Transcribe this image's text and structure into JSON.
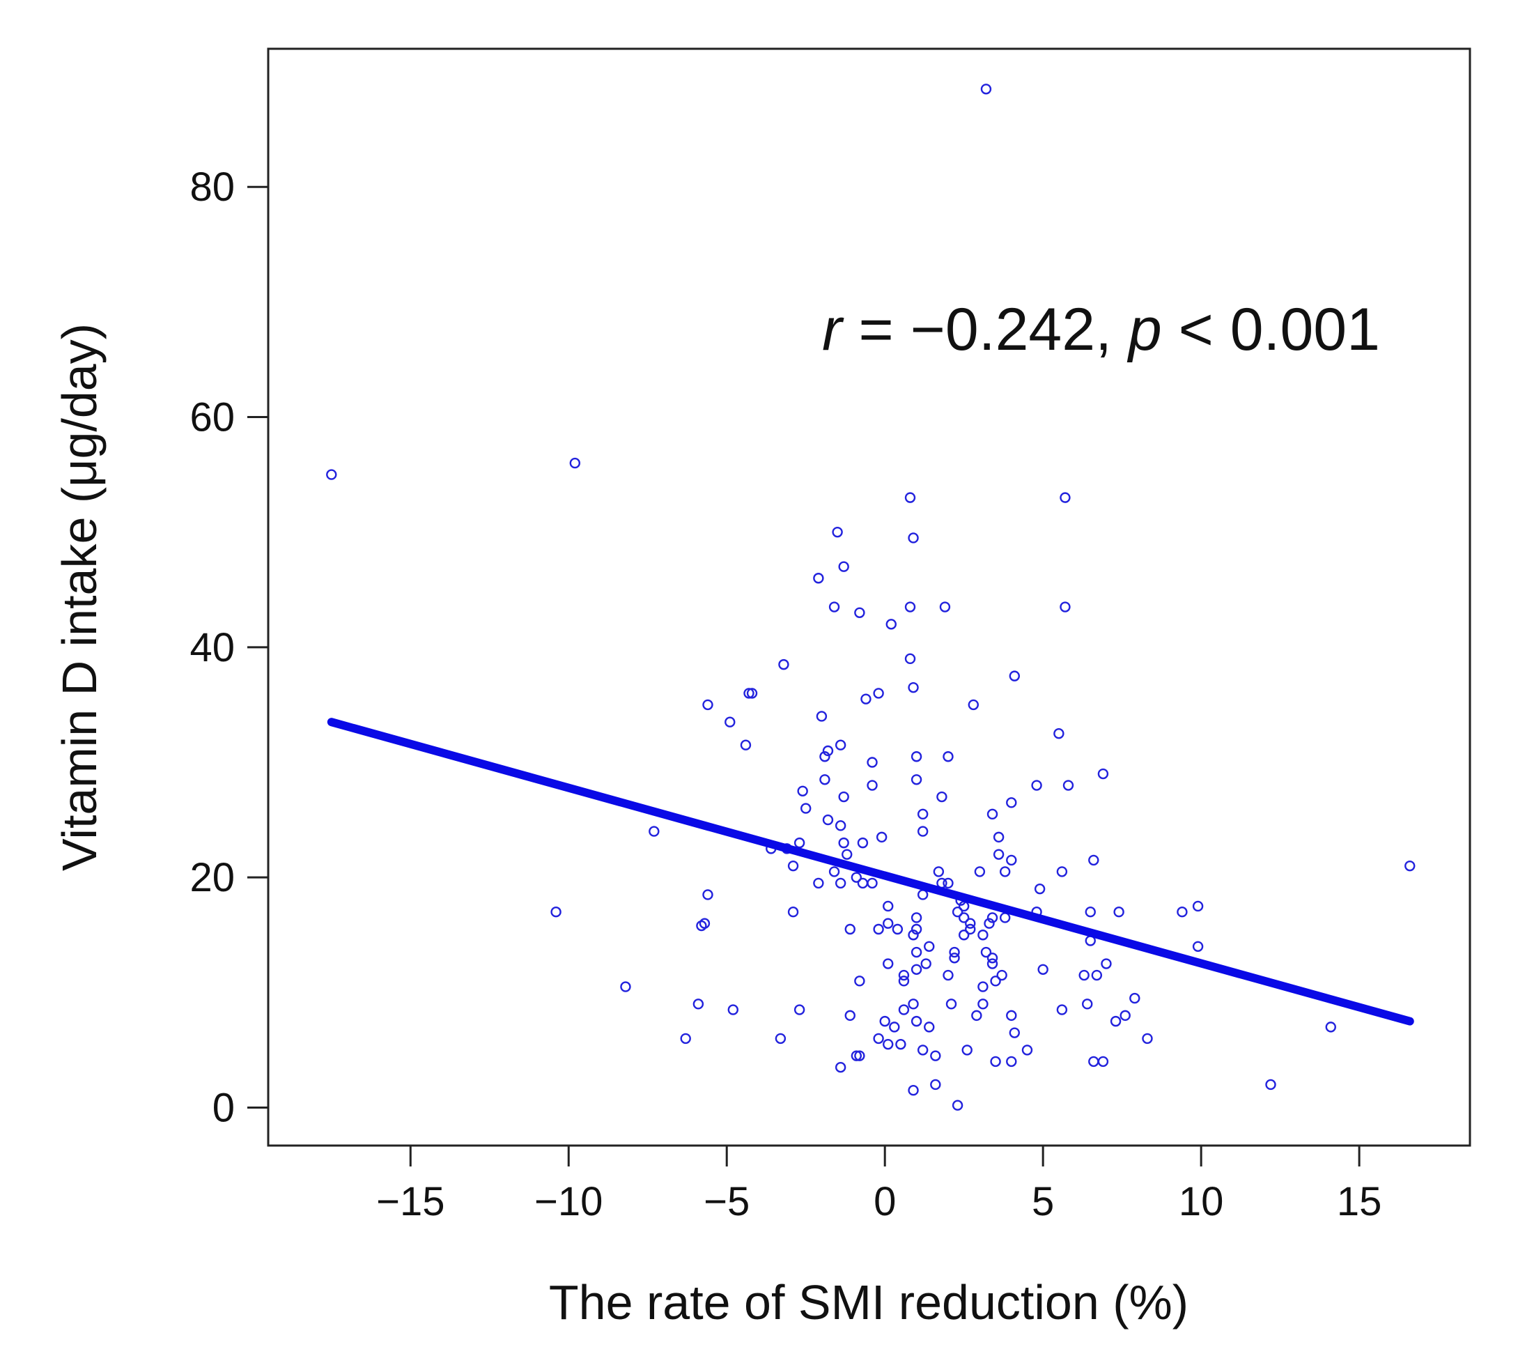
{
  "chart_data": {
    "type": "scatter",
    "title": "",
    "xlabel": "The rate of SMI reduction (%)",
    "ylabel": "Vitamin D intake (μg/day)",
    "xlim": [
      -19.5,
      18.5
    ],
    "ylim": [
      -3.3,
      92
    ],
    "xticks": [
      -15,
      -10,
      -5,
      0,
      5,
      10,
      15
    ],
    "yticks": [
      0,
      20,
      40,
      60,
      80
    ],
    "xtick_labels": [
      "−15",
      "−10",
      "−5",
      "0",
      "5",
      "10",
      "15"
    ],
    "ytick_labels": [
      "0",
      "20",
      "40",
      "60",
      "80"
    ],
    "annotation": {
      "r_symbol": "r",
      "r_text": " = −0.242, ",
      "p_symbol": "p",
      "p_text": " < 0.001"
    },
    "colors": {
      "points": "#2222dd",
      "fit_line": "#0a0ae6",
      "frame": "#222222"
    },
    "fit_line": {
      "x": [
        -17.5,
        16.6
      ],
      "y": [
        33.5,
        7.5
      ]
    },
    "points": [
      [
        3.2,
        88.5
      ],
      [
        -17.5,
        55
      ],
      [
        -9.8,
        56
      ],
      [
        0.8,
        53
      ],
      [
        5.7,
        53
      ],
      [
        0.9,
        49.5
      ],
      [
        -1.5,
        50
      ],
      [
        -1.3,
        47
      ],
      [
        -2.1,
        46
      ],
      [
        -1.6,
        43.5
      ],
      [
        -0.8,
        43
      ],
      [
        0.8,
        43.5
      ],
      [
        1.9,
        43.5
      ],
      [
        5.7,
        43.5
      ],
      [
        0.2,
        42
      ],
      [
        0.8,
        39
      ],
      [
        -3.2,
        38.5
      ],
      [
        4.1,
        37.5
      ],
      [
        -4.2,
        36
      ],
      [
        -4.3,
        36
      ],
      [
        0.9,
        36.5
      ],
      [
        -0.2,
        36
      ],
      [
        -0.6,
        35.5
      ],
      [
        2.8,
        35
      ],
      [
        -5.6,
        35
      ],
      [
        -2,
        34
      ],
      [
        -4.9,
        33.5
      ],
      [
        5.5,
        32.5
      ],
      [
        -4.4,
        31.5
      ],
      [
        -1.4,
        31.5
      ],
      [
        -1.8,
        31
      ],
      [
        -1.9,
        30.5
      ],
      [
        1,
        30.5
      ],
      [
        2,
        30.5
      ],
      [
        -0.4,
        30
      ],
      [
        6.9,
        29
      ],
      [
        -1.9,
        28.5
      ],
      [
        1,
        28.5
      ],
      [
        -0.4,
        28
      ],
      [
        4.8,
        28
      ],
      [
        5.8,
        28
      ],
      [
        -2.6,
        27.5
      ],
      [
        -1.3,
        27
      ],
      [
        1.8,
        27
      ],
      [
        4,
        26.5
      ],
      [
        -2.5,
        26
      ],
      [
        1.2,
        25.5
      ],
      [
        3.4,
        25.5
      ],
      [
        -1.8,
        25
      ],
      [
        -1.4,
        24.5
      ],
      [
        1.2,
        24
      ],
      [
        -0.1,
        23.5
      ],
      [
        3.6,
        23.5
      ],
      [
        -7.3,
        24
      ],
      [
        -1.3,
        23
      ],
      [
        -0.7,
        23
      ],
      [
        -2.7,
        23
      ],
      [
        -3.1,
        22.5
      ],
      [
        -3.6,
        22.5
      ],
      [
        3.6,
        22
      ],
      [
        -1.2,
        22
      ],
      [
        4,
        21.5
      ],
      [
        6.6,
        21.5
      ],
      [
        -2.9,
        21
      ],
      [
        -1.6,
        20.5
      ],
      [
        1.7,
        20.5
      ],
      [
        3,
        20.5
      ],
      [
        3.8,
        20.5
      ],
      [
        5.6,
        20.5
      ],
      [
        16.6,
        21
      ],
      [
        -0.9,
        20
      ],
      [
        2,
        19.5
      ],
      [
        -2.1,
        19.5
      ],
      [
        -1.4,
        19.5
      ],
      [
        -0.7,
        19.5
      ],
      [
        -0.4,
        19.5
      ],
      [
        1.8,
        19.5
      ],
      [
        4.9,
        19
      ],
      [
        -5.6,
        18.5
      ],
      [
        1.2,
        18.5
      ],
      [
        2.4,
        18
      ],
      [
        9.9,
        17.5
      ],
      [
        0.1,
        17.5
      ],
      [
        2.5,
        17.5
      ],
      [
        2.3,
        17
      ],
      [
        -2.9,
        17
      ],
      [
        -10.4,
        17
      ],
      [
        4.8,
        17
      ],
      [
        6.5,
        17
      ],
      [
        7.4,
        17
      ],
      [
        9.4,
        17
      ],
      [
        1,
        16.5
      ],
      [
        3.8,
        16.5
      ],
      [
        2.5,
        16.5
      ],
      [
        3.4,
        16.5
      ],
      [
        2.7,
        16
      ],
      [
        3.3,
        16
      ],
      [
        0.1,
        16
      ],
      [
        1,
        15.5
      ],
      [
        2.7,
        15.5
      ],
      [
        -1.1,
        15.5
      ],
      [
        -5.7,
        16
      ],
      [
        -5.8,
        15.8
      ],
      [
        -0.2,
        15.5
      ],
      [
        0.4,
        15.5
      ],
      [
        0.9,
        15
      ],
      [
        3.1,
        15
      ],
      [
        2.5,
        15
      ],
      [
        6.5,
        14.5
      ],
      [
        9.9,
        14
      ],
      [
        1.4,
        14
      ],
      [
        2.2,
        13.5
      ],
      [
        1,
        13.5
      ],
      [
        3.2,
        13.5
      ],
      [
        3.4,
        13
      ],
      [
        2.2,
        13
      ],
      [
        1.3,
        12.5
      ],
      [
        3.4,
        12.5
      ],
      [
        0.1,
        12.5
      ],
      [
        7,
        12.5
      ],
      [
        1,
        12
      ],
      [
        5,
        12
      ],
      [
        6.7,
        11.5
      ],
      [
        6.3,
        11.5
      ],
      [
        0.6,
        11.5
      ],
      [
        2,
        11.5
      ],
      [
        3.7,
        11.5
      ],
      [
        3.5,
        11
      ],
      [
        -0.8,
        11
      ],
      [
        0.6,
        11
      ],
      [
        -8.2,
        10.5
      ],
      [
        3.1,
        10.5
      ],
      [
        7.9,
        9.5
      ],
      [
        2.1,
        9
      ],
      [
        -5.9,
        9
      ],
      [
        -2.7,
        8.5
      ],
      [
        -4.8,
        8.5
      ],
      [
        0.9,
        9
      ],
      [
        3.1,
        9
      ],
      [
        6.4,
        9
      ],
      [
        5.6,
        8.5
      ],
      [
        0.6,
        8.5
      ],
      [
        2.9,
        8
      ],
      [
        4,
        8
      ],
      [
        -1.1,
        8
      ],
      [
        7.6,
        8
      ],
      [
        7.3,
        7.5
      ],
      [
        0,
        7.5
      ],
      [
        1,
        7.5
      ],
      [
        1.4,
        7
      ],
      [
        0.3,
        7
      ],
      [
        4.1,
        6.5
      ],
      [
        14.1,
        7
      ],
      [
        -3.3,
        6
      ],
      [
        -6.3,
        6
      ],
      [
        -0.2,
        6
      ],
      [
        0.1,
        5.5
      ],
      [
        0.5,
        5.5
      ],
      [
        1.2,
        5
      ],
      [
        1.6,
        4.5
      ],
      [
        2.6,
        5
      ],
      [
        4.5,
        5
      ],
      [
        8.3,
        6
      ],
      [
        -0.9,
        4.5
      ],
      [
        -0.8,
        4.5
      ],
      [
        3.5,
        4
      ],
      [
        4,
        4
      ],
      [
        -1.4,
        3.5
      ],
      [
        6.6,
        4
      ],
      [
        6.9,
        4
      ],
      [
        0.9,
        1.5
      ],
      [
        1.6,
        2
      ],
      [
        12.2,
        2
      ],
      [
        2.3,
        0.2
      ]
    ]
  }
}
